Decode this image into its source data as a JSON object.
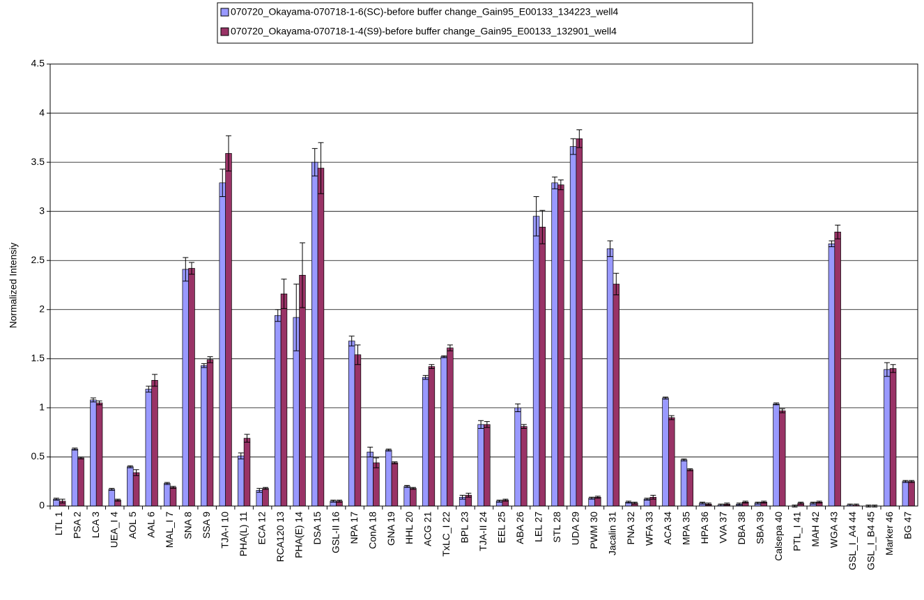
{
  "chart_data": {
    "type": "bar",
    "y_label": "Normalized Intensiy",
    "categories": [
      "LTL 1",
      "PSA 2",
      "LCA 3",
      "UEA_I 4",
      "AOL 5",
      "AAL 6",
      "MAL_I 7",
      "SNA 8",
      "SSA 9",
      "TJA-I 10",
      "PHA(L) 11",
      "ECA 12",
      "RCA120 13",
      "PHA(E) 14",
      "DSA 15",
      "GSL-II 16",
      "NPA 17",
      "ConA 18",
      "GNA 19",
      "HHL 20",
      "ACG 21",
      "TxLC_I 22",
      "BPL 23",
      "TJA-II 24",
      "EEL 25",
      "ABA 26",
      "LEL 27",
      "STL 28",
      "UDA 29",
      "PWM 30",
      "Jacalin 31",
      "PNA 32",
      "WFA 33",
      "ACA 34",
      "MPA 35",
      "HPA 36",
      "VVA 37",
      "DBA 38",
      "SBA 39",
      "Calsepa 40",
      "PTL_I 41",
      "MAH 42",
      "WGA 43",
      "GSL_I_A4 44",
      "GSL_I_B4 45",
      "Marker 46",
      "BG 47"
    ],
    "series": [
      {
        "name": "070720_Okayama-070718-1-6(SC)-before buffer change_Gain95_E00133_134223_well4",
        "color": "#9999ff",
        "values": [
          0.07,
          0.58,
          1.08,
          0.17,
          0.4,
          1.19,
          0.23,
          2.41,
          1.43,
          3.29,
          0.51,
          0.16,
          1.94,
          1.92,
          3.5,
          0.05,
          1.68,
          0.55,
          0.57,
          0.2,
          1.31,
          1.52,
          0.09,
          0.83,
          0.05,
          1.0,
          2.95,
          3.29,
          3.66,
          0.08,
          2.62,
          0.04,
          0.07,
          1.1,
          0.47,
          0.03,
          0.01,
          0.02,
          0.03,
          1.04,
          0.0,
          0.03,
          2.67,
          0.01,
          0.0,
          1.39,
          0.25
        ],
        "errors": [
          0.01,
          0.01,
          0.02,
          0.01,
          0.01,
          0.03,
          0.01,
          0.12,
          0.02,
          0.14,
          0.03,
          0.02,
          0.06,
          0.34,
          0.14,
          0.01,
          0.05,
          0.05,
          0.01,
          0.01,
          0.02,
          0.01,
          0.02,
          0.04,
          0.01,
          0.04,
          0.2,
          0.06,
          0.08,
          0.01,
          0.08,
          0.01,
          0.01,
          0.01,
          0.01,
          0.01,
          0.01,
          0.01,
          0.01,
          0.01,
          0.01,
          0.01,
          0.03,
          0.01,
          0.01,
          0.07,
          0.01
        ]
      },
      {
        "name": "070720_Okayama-070718-1-4(S9)-before buffer change_Gain95_E00133_132901_well4",
        "color": "#993366",
        "values": [
          0.05,
          0.49,
          1.05,
          0.06,
          0.34,
          1.28,
          0.19,
          2.42,
          1.49,
          3.59,
          0.69,
          0.18,
          2.16,
          2.35,
          3.44,
          0.05,
          1.54,
          0.44,
          0.44,
          0.18,
          1.42,
          1.61,
          0.11,
          0.83,
          0.06,
          0.81,
          2.84,
          3.27,
          3.74,
          0.09,
          2.26,
          0.03,
          0.09,
          0.9,
          0.37,
          0.02,
          0.02,
          0.04,
          0.04,
          0.97,
          0.03,
          0.04,
          2.79,
          0.01,
          0.0,
          1.4,
          0.25
        ],
        "errors": [
          0.02,
          0.01,
          0.02,
          0.01,
          0.03,
          0.06,
          0.01,
          0.06,
          0.03,
          0.18,
          0.04,
          0.01,
          0.15,
          0.33,
          0.26,
          0.01,
          0.1,
          0.05,
          0.01,
          0.01,
          0.02,
          0.03,
          0.02,
          0.03,
          0.01,
          0.02,
          0.17,
          0.05,
          0.09,
          0.01,
          0.11,
          0.01,
          0.02,
          0.02,
          0.01,
          0.01,
          0.01,
          0.01,
          0.01,
          0.02,
          0.01,
          0.01,
          0.07,
          0.01,
          0.01,
          0.04,
          0.01
        ]
      }
    ],
    "ylim": [
      0,
      4.5
    ],
    "yticks": [
      0,
      0.5,
      1,
      1.5,
      2,
      2.5,
      3,
      3.5,
      4,
      4.5
    ],
    "grid": true
  }
}
